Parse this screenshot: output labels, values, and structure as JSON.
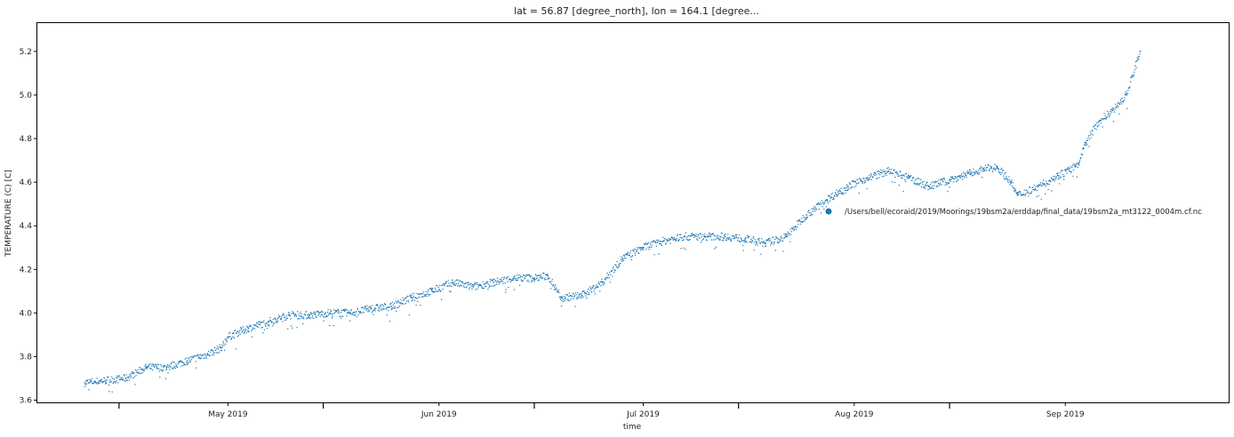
{
  "chart_data": {
    "type": "scatter",
    "title": "lat = 56.87 [degree_north], lon = 164.1 [degree...",
    "xlabel": "time",
    "ylabel": "TEMPERATURE (C) [C]",
    "x_range": [
      "2019-04-03",
      "2019-09-25"
    ],
    "ylim": [
      3.59,
      5.33
    ],
    "x_ticks": [
      {
        "date": "2019-05-01",
        "label": "May 2019"
      },
      {
        "date": "2019-06-01",
        "label": "Jun 2019"
      },
      {
        "date": "2019-07-01",
        "label": "Jul 2019"
      },
      {
        "date": "2019-08-01",
        "label": "Aug 2019"
      },
      {
        "date": "2019-09-01",
        "label": "Sep 2019"
      }
    ],
    "x_minor_ticks": [
      "2019-04-15",
      "2019-05-15",
      "2019-06-15",
      "2019-07-15",
      "2019-08-15"
    ],
    "y_ticks": [
      "3.6",
      "3.8",
      "4.0",
      "4.2",
      "4.4",
      "4.6",
      "4.8",
      "5.0",
      "5.2"
    ],
    "legend": {
      "placement": "center-right",
      "entries": [
        "/Users/bell/ecoraid/2019/Moorings/19bsm2a/erddap/final_data/19bsm2a_mt3122_0004m.cf.nc"
      ]
    },
    "grid": false,
    "series": [
      {
        "name": "/Users/bell/ecoraid/2019/Moorings/19bsm2a/erddap/final_data/19bsm2a_mt3122_0004m.cf.nc",
        "color": "#1f77b4",
        "points": [
          [
            "2019-04-10",
            3.68
          ],
          [
            "2019-04-13",
            3.69
          ],
          [
            "2019-04-16",
            3.7
          ],
          [
            "2019-04-19",
            3.75
          ],
          [
            "2019-04-22",
            3.75
          ],
          [
            "2019-04-25",
            3.78
          ],
          [
            "2019-04-28",
            3.81
          ],
          [
            "2019-04-30",
            3.84
          ],
          [
            "2019-05-01",
            3.89
          ],
          [
            "2019-05-04",
            3.93
          ],
          [
            "2019-05-07",
            3.96
          ],
          [
            "2019-05-10",
            3.99
          ],
          [
            "2019-05-13",
            3.99
          ],
          [
            "2019-05-16",
            4.0
          ],
          [
            "2019-05-19",
            4.0
          ],
          [
            "2019-05-22",
            4.02
          ],
          [
            "2019-05-25",
            4.03
          ],
          [
            "2019-05-28",
            4.07
          ],
          [
            "2019-05-31",
            4.1
          ],
          [
            "2019-06-03",
            4.14
          ],
          [
            "2019-06-06",
            4.12
          ],
          [
            "2019-06-09",
            4.14
          ],
          [
            "2019-06-12",
            4.16
          ],
          [
            "2019-06-15",
            4.16
          ],
          [
            "2019-06-17",
            4.17
          ],
          [
            "2019-06-19",
            4.07
          ],
          [
            "2019-06-22",
            4.08
          ],
          [
            "2019-06-25",
            4.14
          ],
          [
            "2019-06-28",
            4.25
          ],
          [
            "2019-07-01",
            4.3
          ],
          [
            "2019-07-04",
            4.33
          ],
          [
            "2019-07-07",
            4.35
          ],
          [
            "2019-07-10",
            4.35
          ],
          [
            "2019-07-13",
            4.35
          ],
          [
            "2019-07-16",
            4.34
          ],
          [
            "2019-07-19",
            4.32
          ],
          [
            "2019-07-22",
            4.35
          ],
          [
            "2019-07-25",
            4.45
          ],
          [
            "2019-07-28",
            4.52
          ],
          [
            "2019-07-31",
            4.58
          ],
          [
            "2019-08-03",
            4.62
          ],
          [
            "2019-08-06",
            4.65
          ],
          [
            "2019-08-09",
            4.62
          ],
          [
            "2019-08-12",
            4.58
          ],
          [
            "2019-08-15",
            4.61
          ],
          [
            "2019-08-18",
            4.64
          ],
          [
            "2019-08-20",
            4.66
          ],
          [
            "2019-08-22",
            4.67
          ],
          [
            "2019-08-24",
            4.6
          ],
          [
            "2019-08-25",
            4.54
          ],
          [
            "2019-08-28",
            4.58
          ],
          [
            "2019-08-31",
            4.63
          ],
          [
            "2019-09-03",
            4.68
          ],
          [
            "2019-09-04",
            4.78
          ],
          [
            "2019-09-06",
            4.88
          ],
          [
            "2019-09-08",
            4.93
          ],
          [
            "2019-09-10",
            5.0
          ],
          [
            "2019-09-12",
            5.2
          ]
        ]
      }
    ]
  }
}
